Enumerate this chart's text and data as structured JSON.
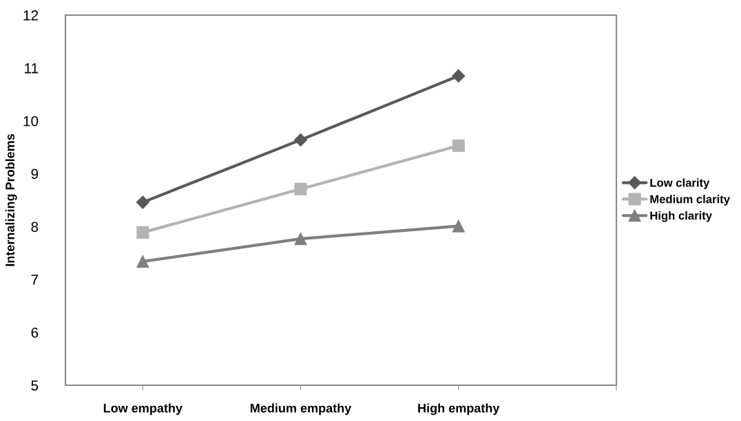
{
  "chart_data": {
    "type": "line",
    "ylabel": "Internalizing Problems",
    "categories": [
      "Low empathy",
      "Medium empathy",
      "High empathy",
      null
    ],
    "series": [
      {
        "name": "Low clarity",
        "color": "#595959",
        "marker": "diamond",
        "values": [
          8.46,
          9.64,
          10.85,
          null
        ]
      },
      {
        "name": "Medium clarity",
        "color": "#b3b3b3",
        "marker": "square",
        "values": [
          7.89,
          8.71,
          9.53,
          null
        ]
      },
      {
        "name": "High clarity",
        "color": "#7f7f7f",
        "marker": "triangle",
        "values": [
          7.34,
          7.77,
          8.01,
          null
        ]
      }
    ],
    "ylim": [
      5,
      12
    ],
    "yticks": [
      5,
      6,
      7,
      8,
      9,
      10,
      11,
      12
    ],
    "grid": false,
    "legend": "right",
    "line_style": "solid"
  }
}
